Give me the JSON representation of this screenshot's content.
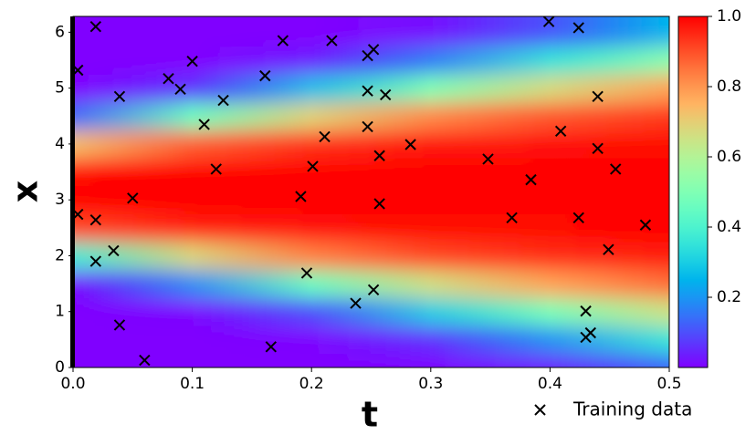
{
  "chart_data": {
    "type": "heatmap",
    "x_label": "t",
    "y_label": "x",
    "xlim": [
      0,
      0.5
    ],
    "ylim": [
      0,
      6.283
    ],
    "xticks": [
      {
        "value": 0,
        "label": "0.0"
      },
      0.1,
      0.2,
      0.3,
      0.4,
      0.5
    ],
    "yticks": [
      0,
      1,
      2,
      3,
      4,
      5,
      6
    ],
    "colormap": "rainbow",
    "heatmap": {
      "t": [
        0,
        0.1,
        0.2,
        0.3,
        0.4,
        0.5
      ],
      "x": [
        0,
        0.5,
        1,
        1.5,
        2,
        2.5,
        3,
        3.5,
        4,
        4.5,
        5,
        5.5,
        6
      ],
      "z": [
        [
          0,
          0,
          0,
          0.004,
          0.038,
          0.13
        ],
        [
          0,
          0,
          0.005,
          0.06,
          0.195,
          0.36
        ],
        [
          0,
          0.008,
          0.1,
          0.3,
          0.49,
          0.65
        ],
        [
          0.017,
          0.19,
          0.46,
          0.66,
          0.78,
          0.86
        ],
        [
          0.38,
          0.68,
          0.83,
          0.91,
          0.945,
          0.965
        ],
        [
          0.91,
          0.96,
          0.98,
          0.99,
          0.99,
          1
        ],
        [
          1,
          1,
          1,
          1,
          1,
          1
        ],
        [
          0.99,
          1,
          1,
          1,
          1,
          1
        ],
        [
          0.73,
          0.88,
          0.94,
          0.97,
          0.98,
          0.99
        ],
        [
          0.14,
          0.46,
          0.69,
          0.82,
          0.89,
          0.93
        ],
        [
          0,
          0.065,
          0.27,
          0.5,
          0.67,
          0.78
        ],
        [
          0,
          0,
          0.036,
          0.165,
          0.35,
          0.52
        ],
        [
          0,
          0,
          0,
          0.02,
          0.105,
          0.25
        ]
      ]
    },
    "colorbar": {
      "lim": [
        0,
        1
      ],
      "ticks": [
        0.2,
        0.4,
        0.6,
        0.8,
        {
          "value": 1,
          "label": "1.0"
        }
      ]
    },
    "legend": "bottom-right",
    "series": [
      {
        "name": "Training data",
        "color": "#000000",
        "marker": "x",
        "x": [
          0.004,
          0.019,
          0.004,
          0.019,
          0.019,
          0.034,
          0.039,
          0.039,
          0.05,
          0.06,
          0.08,
          0.09,
          0.1,
          0.11,
          0.12,
          0.126,
          0.161,
          0.166,
          0.176,
          0.191,
          0.196,
          0.201,
          0.211,
          0.217,
          0.237,
          0.247,
          0.252,
          0.247,
          0.247,
          0.262,
          0.257,
          0.257,
          0.252,
          0.283,
          0.348,
          0.368,
          0.384,
          0.399,
          0.409,
          0.424,
          0.424,
          0.43,
          0.43,
          0.434,
          0.44,
          0.44,
          0.449,
          0.455,
          0.48
        ],
        "y": [
          5.32,
          6.1,
          2.74,
          2.64,
          1.9,
          2.09,
          4.85,
          0.76,
          3.03,
          0.13,
          5.17,
          4.98,
          5.48,
          4.35,
          3.55,
          4.78,
          5.22,
          0.37,
          5.85,
          3.06,
          1.69,
          3.6,
          4.13,
          5.85,
          1.15,
          5.58,
          5.69,
          4.95,
          4.31,
          4.88,
          3.79,
          2.93,
          1.39,
          3.99,
          3.73,
          2.68,
          3.36,
          6.19,
          4.23,
          6.08,
          2.68,
          1.01,
          0.54,
          0.62,
          4.85,
          3.92,
          2.11,
          3.55,
          2.55
        ]
      }
    ]
  }
}
